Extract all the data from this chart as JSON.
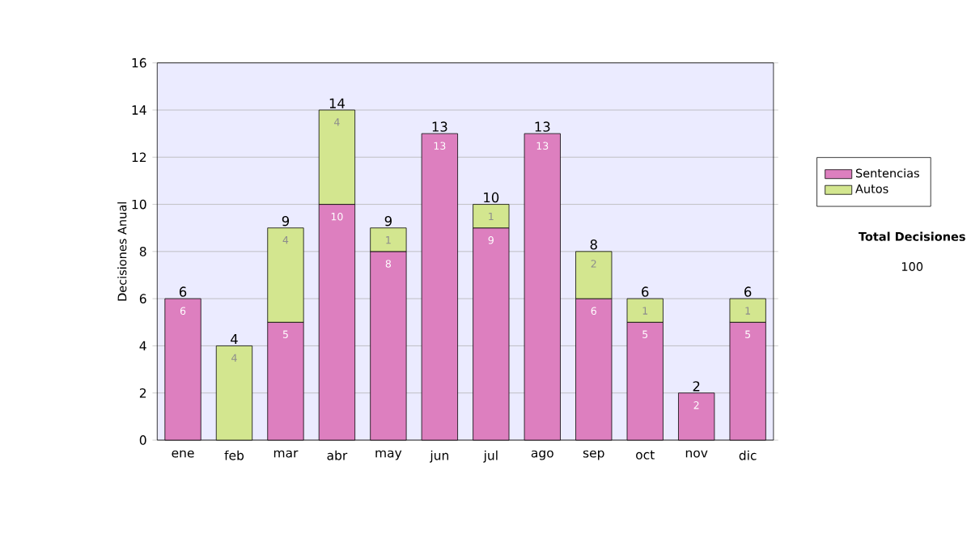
{
  "chart_data": {
    "type": "bar",
    "stacked": true,
    "ylabel": "Decisiones Anual",
    "categories": [
      "ene",
      "feb",
      "mar",
      "abr",
      "may",
      "jun",
      "jul",
      "ago",
      "sep",
      "oct",
      "nov",
      "dic"
    ],
    "series": [
      {
        "name": "Sentencias",
        "color": "#dd7fbf",
        "values": [
          6,
          null,
          5,
          10,
          8,
          13,
          9,
          13,
          6,
          5,
          2,
          5
        ]
      },
      {
        "name": "Autos",
        "color": "#d3e68f",
        "values": [
          null,
          4,
          4,
          4,
          1,
          null,
          1,
          null,
          2,
          1,
          null,
          1
        ]
      }
    ],
    "totals": [
      "6",
      "4",
      "9",
      "14",
      "9",
      "13",
      "10",
      "13",
      "8",
      "6",
      "2",
      "6"
    ],
    "data_labels": true,
    "ylim": [
      0,
      16
    ],
    "yticks": [
      0,
      2,
      4,
      6,
      8,
      10,
      12,
      14,
      16
    ],
    "grid": "y",
    "legend": "right",
    "annotations": [
      "Total Decisiones",
      "100"
    ]
  }
}
